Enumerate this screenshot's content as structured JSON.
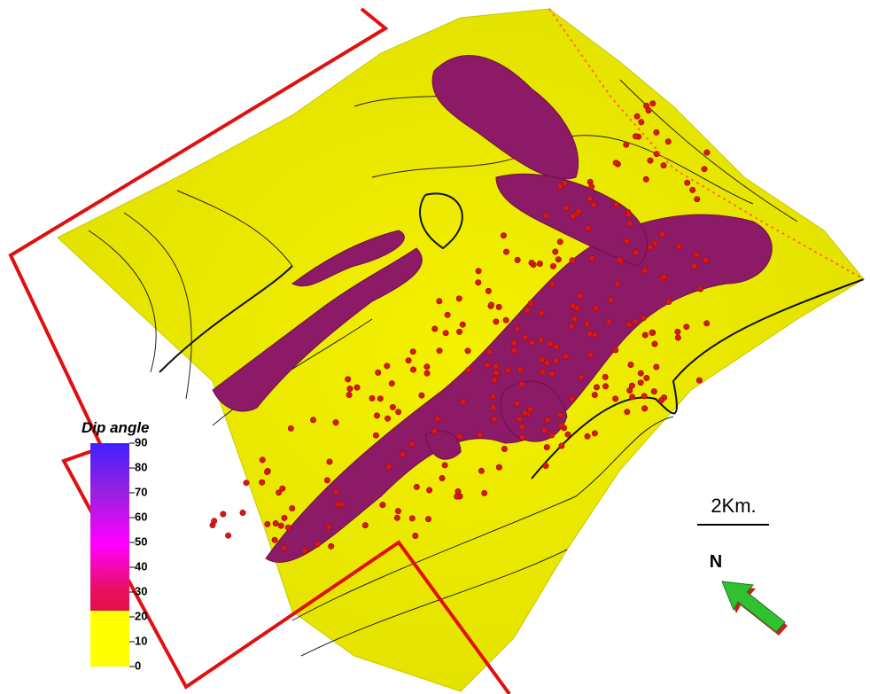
{
  "legend": {
    "title": "Dip angle",
    "lim": [
      0,
      90
    ],
    "ticks": [
      0,
      10,
      20,
      30,
      40,
      50,
      60,
      70,
      80,
      90
    ]
  },
  "scale_bar": {
    "label": "2Km."
  },
  "north_arrow": {
    "label": "N"
  }
}
